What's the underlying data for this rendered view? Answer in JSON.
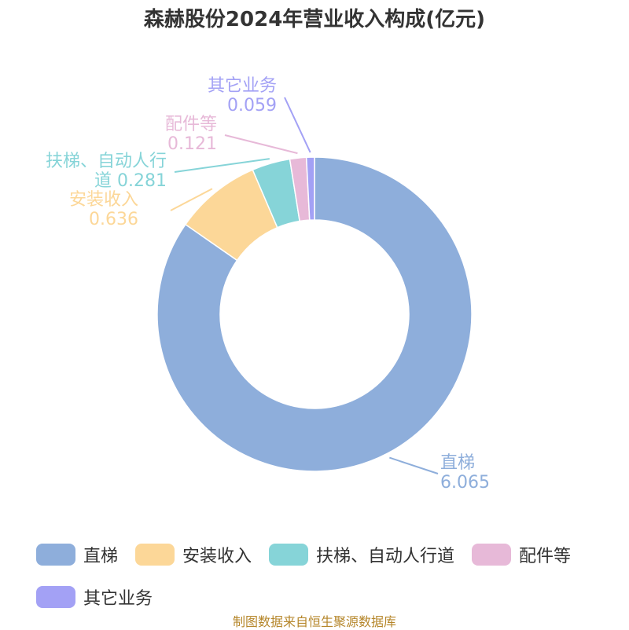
{
  "chart_data": {
    "type": "pie",
    "title": "森赫股份2024年营业收入构成(亿元)",
    "donut": true,
    "slices": [
      {
        "name": "直梯",
        "label_lines": [
          "直梯"
        ],
        "value": 6.065,
        "value_text": "6.065",
        "color": "#8eaedb"
      },
      {
        "name": "安装收入",
        "label_lines": [
          "安装收入"
        ],
        "value": 0.636,
        "value_text": "0.636",
        "color": "#fcd798"
      },
      {
        "name": "扶梯、自动人行道",
        "label_lines": [
          "扶梯、自动人行",
          "道"
        ],
        "value": 0.281,
        "value_text": "0.281",
        "color": "#86d4d8"
      },
      {
        "name": "配件等",
        "label_lines": [
          "配件等"
        ],
        "value": 0.121,
        "value_text": "0.121",
        "color": "#e7b9d8"
      },
      {
        "name": "其它业务",
        "label_lines": [
          "其它业务"
        ],
        "value": 0.059,
        "value_text": "0.059",
        "color": "#a3a1f5"
      }
    ],
    "legend_position": "bottom"
  },
  "footer": {
    "source": "制图数据来自恒生聚源数据库"
  }
}
